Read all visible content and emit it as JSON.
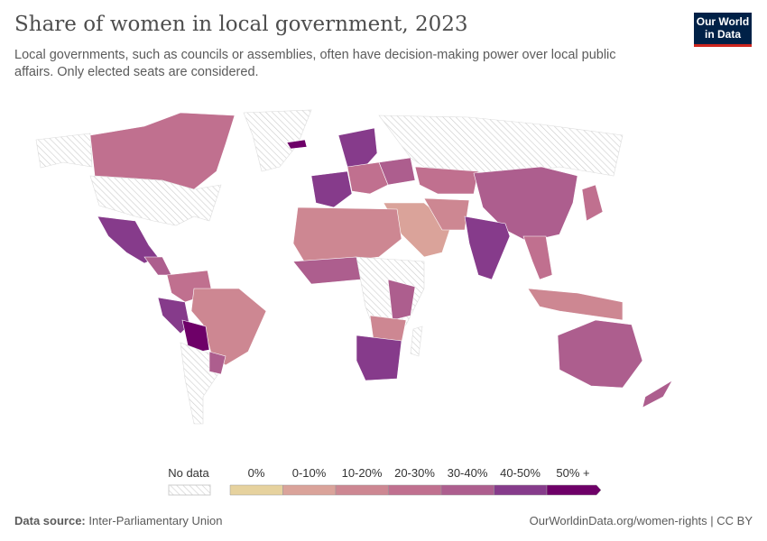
{
  "header": {
    "title": "Share of women in local government, 2023",
    "subtitle": "Local governments, such as councils or assemblies, often have decision-making power over local public affairs. Only elected seats are considered.",
    "logo_text": "Our World in Data"
  },
  "legend": {
    "no_data_label": "No data",
    "bins": [
      {
        "label": "0%",
        "color": "#e6d29e"
      },
      {
        "label": "0-10%",
        "color": "#daa39a"
      },
      {
        "label": "10-20%",
        "color": "#cd8792"
      },
      {
        "label": "20-30%",
        "color": "#c0708f"
      },
      {
        "label": "30-40%",
        "color": "#ad5e8e"
      },
      {
        "label": "40-50%",
        "color": "#863b8b"
      },
      {
        "label": "50% +",
        "color": "#6e0068"
      }
    ]
  },
  "footer": {
    "source_label": "Data source:",
    "source": "Inter-Parliamentary Union",
    "link": "OurWorldinData.org/women-rights | CC BY"
  }
}
